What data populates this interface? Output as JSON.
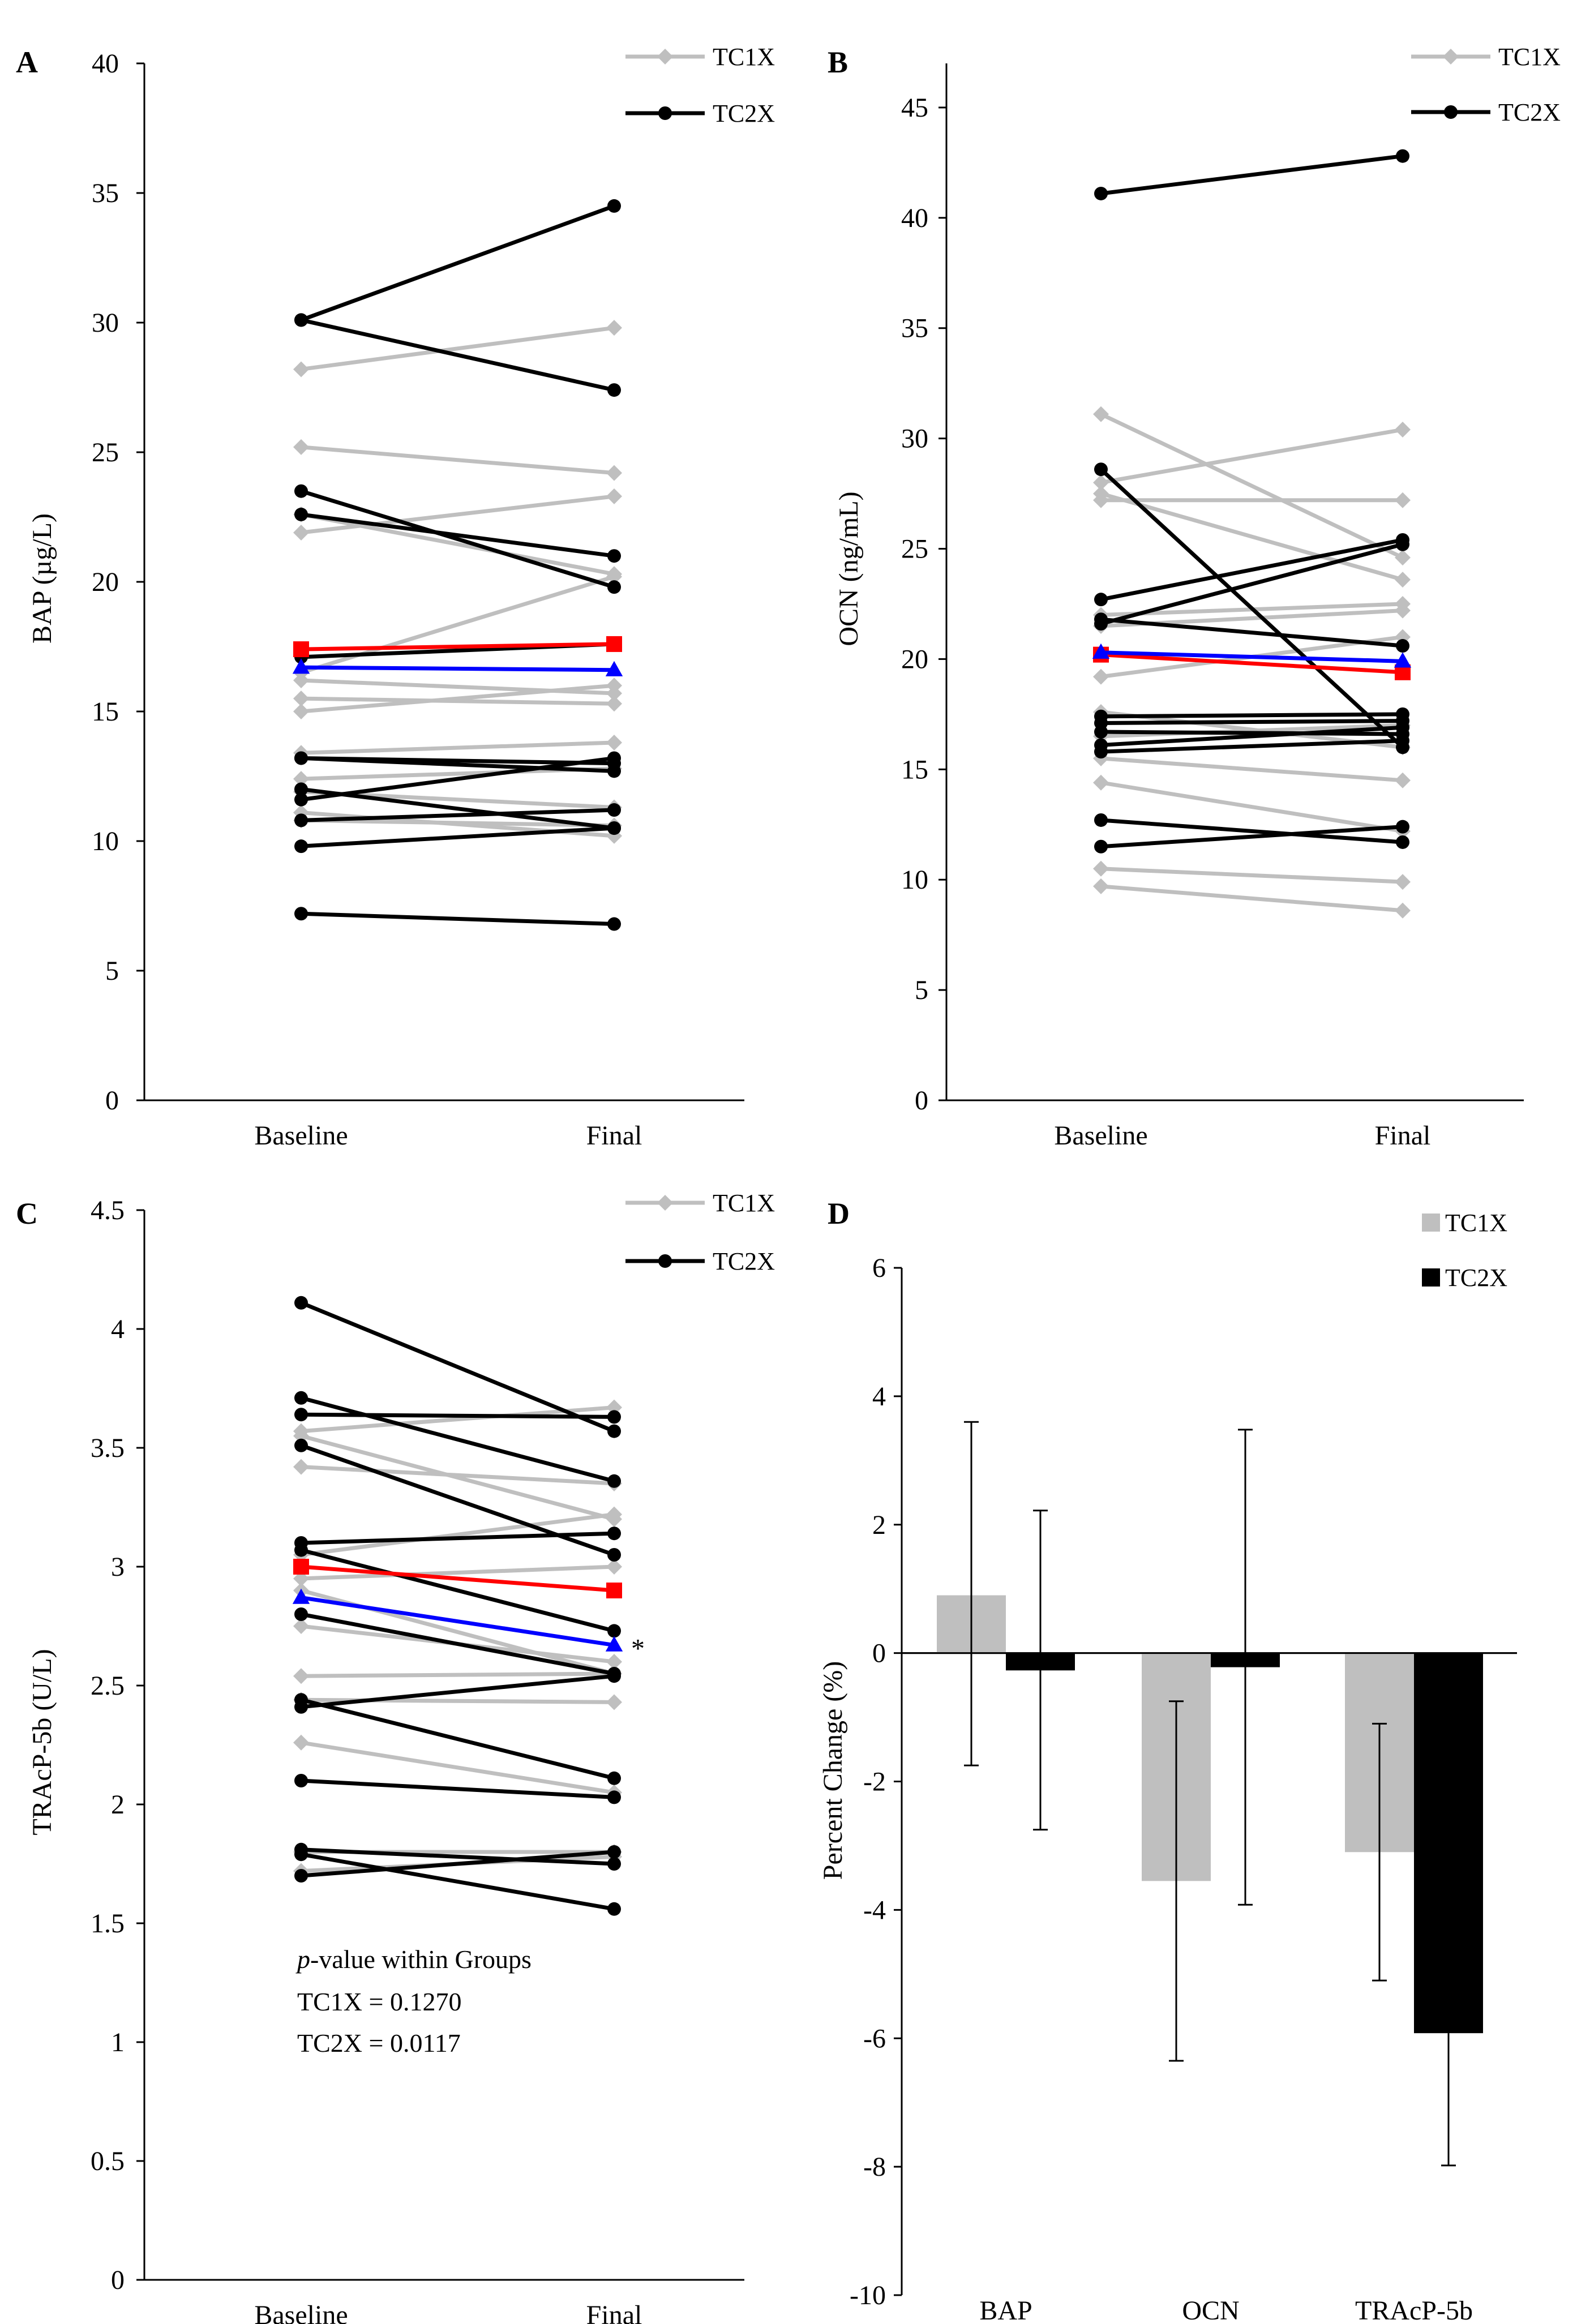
{
  "colors": {
    "tc1x": "#bfbfbf",
    "tc2x": "#000000",
    "tc1x_mean": "#0000ff",
    "tc2x_mean": "#ff0000"
  },
  "chart_data": [
    {
      "panel": "A",
      "type": "line",
      "ylabel": "BAP (µg/L)",
      "categories": [
        "Baseline",
        "Final"
      ],
      "ylim": [
        0,
        40
      ],
      "yticks": [
        0,
        5,
        10,
        15,
        20,
        25,
        30,
        35,
        40
      ],
      "legend": [
        "TC1X",
        "TC2X"
      ],
      "legend_position": "top-right",
      "tc1x": [
        [
          28.2,
          29.8
        ],
        [
          25.2,
          24.2
        ],
        [
          21.9,
          23.3
        ],
        [
          22.6,
          20.3
        ],
        [
          16.5,
          20.2
        ],
        [
          15.5,
          15.3
        ],
        [
          15.0,
          16.0
        ],
        [
          16.2,
          15.7
        ],
        [
          13.4,
          13.8
        ],
        [
          12.4,
          12.8
        ],
        [
          11.9,
          11.3
        ],
        [
          10.8,
          10.6
        ],
        [
          11.1,
          10.2
        ]
      ],
      "tc2x": [
        [
          30.1,
          34.5
        ],
        [
          30.1,
          27.4
        ],
        [
          23.5,
          19.8
        ],
        [
          22.6,
          21.0
        ],
        [
          17.1,
          17.6
        ],
        [
          13.2,
          12.7
        ],
        [
          13.2,
          13.0
        ],
        [
          12.0,
          10.5
        ],
        [
          11.6,
          13.2
        ],
        [
          10.8,
          11.2
        ],
        [
          9.8,
          10.5
        ],
        [
          7.2,
          6.8
        ]
      ],
      "tc1x_mean": [
        16.7,
        16.6
      ],
      "tc2x_mean": [
        17.4,
        17.6
      ]
    },
    {
      "panel": "B",
      "type": "line",
      "ylabel": "OCN (ng/mL)",
      "categories": [
        "Baseline",
        "Final"
      ],
      "ylim": [
        0,
        47
      ],
      "yticks": [
        0,
        5,
        10,
        15,
        20,
        25,
        30,
        35,
        40,
        45
      ],
      "legend": [
        "TC1X",
        "TC2X"
      ],
      "legend_position": "top-right",
      "tc1x": [
        [
          31.1,
          24.6
        ],
        [
          28.0,
          30.4
        ],
        [
          27.2,
          27.2
        ],
        [
          27.5,
          23.6
        ],
        [
          22.0,
          22.5
        ],
        [
          21.5,
          22.2
        ],
        [
          19.2,
          21.0
        ],
        [
          17.6,
          16.0
        ],
        [
          16.5,
          17.0
        ],
        [
          15.5,
          14.5
        ],
        [
          14.4,
          12.2
        ],
        [
          10.5,
          9.9
        ],
        [
          9.7,
          8.6
        ]
      ],
      "tc2x": [
        [
          41.1,
          42.8
        ],
        [
          28.6,
          16.0
        ],
        [
          22.7,
          25.4
        ],
        [
          21.8,
          20.6
        ],
        [
          21.6,
          25.2
        ],
        [
          17.4,
          17.5
        ],
        [
          17.1,
          17.2
        ],
        [
          16.7,
          16.6
        ],
        [
          16.1,
          16.9
        ],
        [
          15.8,
          16.3
        ],
        [
          12.7,
          11.7
        ],
        [
          11.5,
          12.4
        ]
      ],
      "tc1x_mean": [
        20.3,
        19.9
      ],
      "tc2x_mean": [
        20.2,
        19.4
      ]
    },
    {
      "panel": "C",
      "type": "line",
      "ylabel": "TRAcP-5b (U/L)",
      "categories": [
        "Baseline",
        "Final"
      ],
      "ylim": [
        0,
        4.5
      ],
      "yticks": [
        "0",
        "0.5",
        "1",
        "1.5",
        "2",
        "2.5",
        "3",
        "3.5",
        "4",
        "4.5"
      ],
      "legend": [
        "TC1X",
        "TC2X"
      ],
      "legend_position": "top-right",
      "tc1x": [
        [
          3.57,
          3.67
        ],
        [
          3.55,
          3.2
        ],
        [
          3.42,
          3.35
        ],
        [
          3.05,
          3.22
        ],
        [
          2.95,
          3.0
        ],
        [
          2.9,
          2.55
        ],
        [
          2.75,
          2.6
        ],
        [
          2.54,
          2.55
        ],
        [
          2.44,
          2.43
        ],
        [
          2.26,
          2.05
        ],
        [
          1.8,
          1.8
        ],
        [
          1.72,
          1.78
        ]
      ],
      "tc2x": [
        [
          4.11,
          3.57
        ],
        [
          3.71,
          3.36
        ],
        [
          3.64,
          3.63
        ],
        [
          3.51,
          3.05
        ],
        [
          3.1,
          3.14
        ],
        [
          3.07,
          2.73
        ],
        [
          2.8,
          2.55
        ],
        [
          2.44,
          2.11
        ],
        [
          2.41,
          2.54
        ],
        [
          2.1,
          2.03
        ],
        [
          1.81,
          1.75
        ],
        [
          1.79,
          1.56
        ],
        [
          1.7,
          1.8
        ]
      ],
      "tc1x_mean": [
        2.87,
        2.67
      ],
      "tc2x_mean": [
        3.0,
        2.9
      ],
      "significance_marker": "*",
      "annotation": {
        "italic_prefix": "p",
        "title_rest": "-value within Groups",
        "tc1x": "TC1X = 0.1270",
        "tc2x": "TC2X = 0.0117"
      }
    },
    {
      "panel": "D",
      "type": "bar",
      "ylabel": "Percent Change (%)",
      "categories": [
        "BAP",
        "OCN",
        "TRAcP-5b"
      ],
      "ylim": [
        -10,
        6
      ],
      "yticks": [
        -10,
        -8,
        -6,
        -4,
        -2,
        0,
        2,
        4,
        6
      ],
      "legend_position": "top-right",
      "series": [
        {
          "name": "TC1X",
          "values": [
            0.9,
            -3.55,
            -3.1
          ],
          "err_low": [
            -1.75,
            -6.35,
            -5.1
          ],
          "err_high": [
            3.6,
            -0.75,
            -1.1
          ]
        },
        {
          "name": "TC2X",
          "values": [
            -0.27,
            -0.22,
            -5.92
          ],
          "err_low": [
            -2.75,
            -3.92,
            -7.98
          ],
          "err_high": [
            2.22,
            3.48,
            null
          ]
        }
      ]
    }
  ]
}
